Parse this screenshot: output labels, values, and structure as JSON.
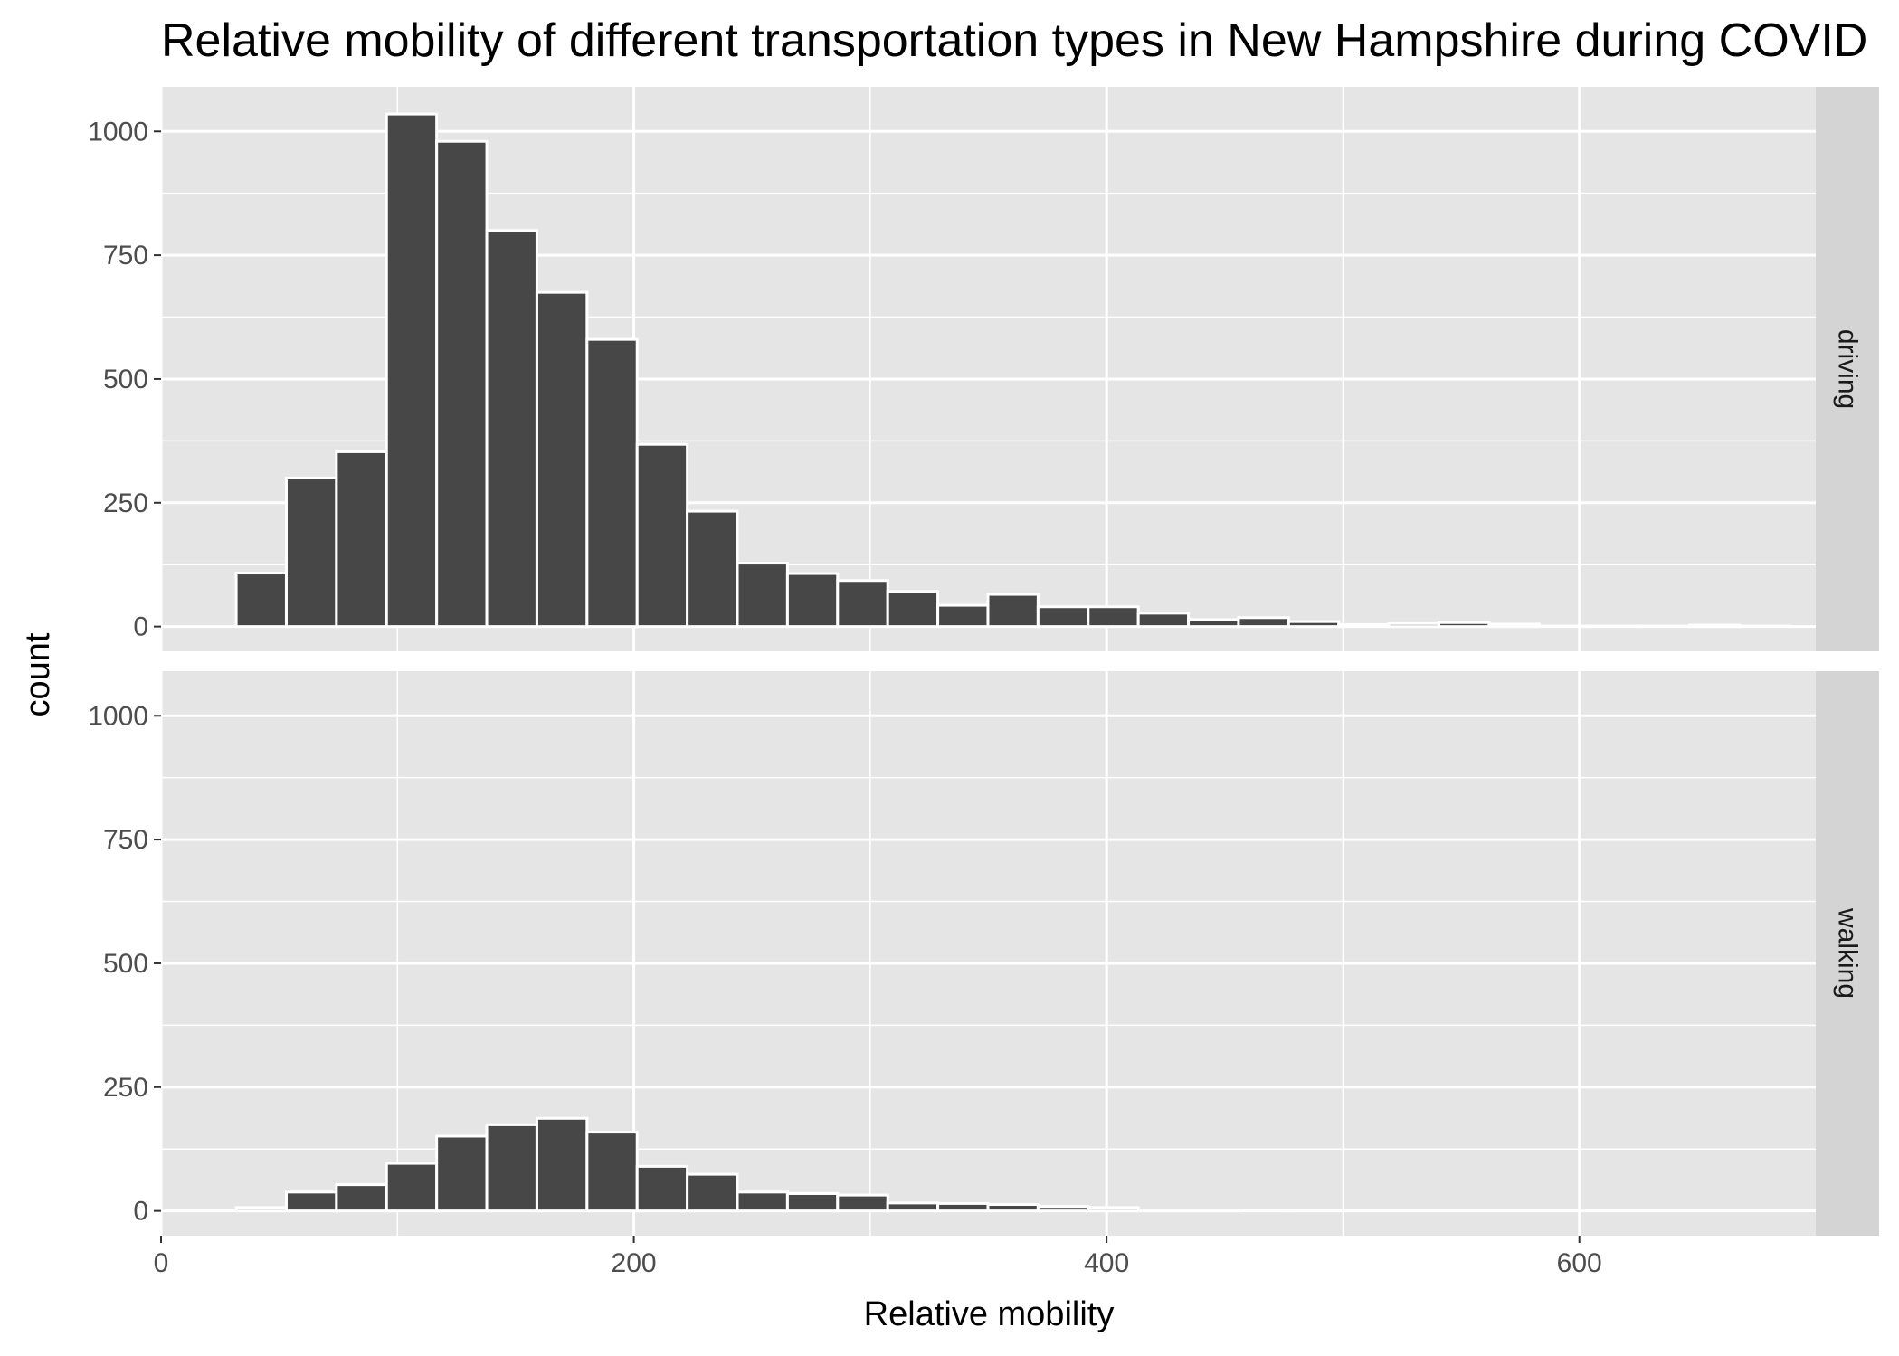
{
  "chart_data": {
    "type": "bar",
    "title": "Relative mobility of different transportation types in New Hampshire during COVID",
    "xlabel": "Relative mobility",
    "ylabel": "count",
    "xlim": [
      0,
      700
    ],
    "ylim": [
      -50,
      1090
    ],
    "x_ticks": [
      0,
      200,
      400,
      600
    ],
    "y_ticks": [
      0,
      250,
      500,
      750,
      1000
    ],
    "bin_width": 21.2,
    "grid": true,
    "facets": [
      {
        "name": "driving",
        "bins": [
          {
            "x": 42.4,
            "count": 108
          },
          {
            "x": 63.6,
            "count": 300
          },
          {
            "x": 84.8,
            "count": 353
          },
          {
            "x": 106.0,
            "count": 1035
          },
          {
            "x": 127.2,
            "count": 980
          },
          {
            "x": 148.4,
            "count": 800
          },
          {
            "x": 169.6,
            "count": 675
          },
          {
            "x": 190.8,
            "count": 580
          },
          {
            "x": 212.0,
            "count": 368
          },
          {
            "x": 233.2,
            "count": 233
          },
          {
            "x": 254.4,
            "count": 128
          },
          {
            "x": 275.6,
            "count": 107
          },
          {
            "x": 296.8,
            "count": 93
          },
          {
            "x": 318.0,
            "count": 71
          },
          {
            "x": 339.2,
            "count": 43
          },
          {
            "x": 360.4,
            "count": 65
          },
          {
            "x": 381.6,
            "count": 40
          },
          {
            "x": 402.8,
            "count": 40
          },
          {
            "x": 424.0,
            "count": 27
          },
          {
            "x": 445.2,
            "count": 14
          },
          {
            "x": 466.4,
            "count": 18
          },
          {
            "x": 487.6,
            "count": 10
          },
          {
            "x": 508.8,
            "count": 4
          },
          {
            "x": 530.0,
            "count": 6
          },
          {
            "x": 551.2,
            "count": 8
          },
          {
            "x": 572.4,
            "count": 5
          },
          {
            "x": 593.6,
            "count": 1
          },
          {
            "x": 614.8,
            "count": 1
          },
          {
            "x": 636.0,
            "count": 1
          },
          {
            "x": 657.2,
            "count": 3
          },
          {
            "x": 678.4,
            "count": 1
          }
        ]
      },
      {
        "name": "walking",
        "bins": [
          {
            "x": 42.4,
            "count": 7
          },
          {
            "x": 63.6,
            "count": 38
          },
          {
            "x": 84.8,
            "count": 53
          },
          {
            "x": 106.0,
            "count": 96
          },
          {
            "x": 127.2,
            "count": 151
          },
          {
            "x": 148.4,
            "count": 174
          },
          {
            "x": 169.6,
            "count": 187
          },
          {
            "x": 190.8,
            "count": 159
          },
          {
            "x": 212.0,
            "count": 90
          },
          {
            "x": 233.2,
            "count": 74
          },
          {
            "x": 254.4,
            "count": 38
          },
          {
            "x": 275.6,
            "count": 35
          },
          {
            "x": 296.8,
            "count": 32
          },
          {
            "x": 318.0,
            "count": 16
          },
          {
            "x": 339.2,
            "count": 15
          },
          {
            "x": 360.4,
            "count": 13
          },
          {
            "x": 381.6,
            "count": 9
          },
          {
            "x": 402.8,
            "count": 7
          },
          {
            "x": 424.0,
            "count": 2
          },
          {
            "x": 445.2,
            "count": 2
          },
          {
            "x": 466.4,
            "count": 1
          },
          {
            "x": 487.6,
            "count": 1
          },
          {
            "x": 508.8,
            "count": 0
          },
          {
            "x": 530.0,
            "count": 0
          },
          {
            "x": 551.2,
            "count": 0
          },
          {
            "x": 572.4,
            "count": 0
          },
          {
            "x": 593.6,
            "count": 0
          },
          {
            "x": 614.8,
            "count": 0
          },
          {
            "x": 636.0,
            "count": 0
          },
          {
            "x": 657.2,
            "count": 0
          },
          {
            "x": 678.4,
            "count": 0
          }
        ]
      }
    ],
    "colors": {
      "bar_fill": "#474747",
      "bar_outline": "#ffffff",
      "panel_bg": "#e5e5e5",
      "strip_bg": "#d4d4d4",
      "grid": "#ffffff"
    }
  }
}
